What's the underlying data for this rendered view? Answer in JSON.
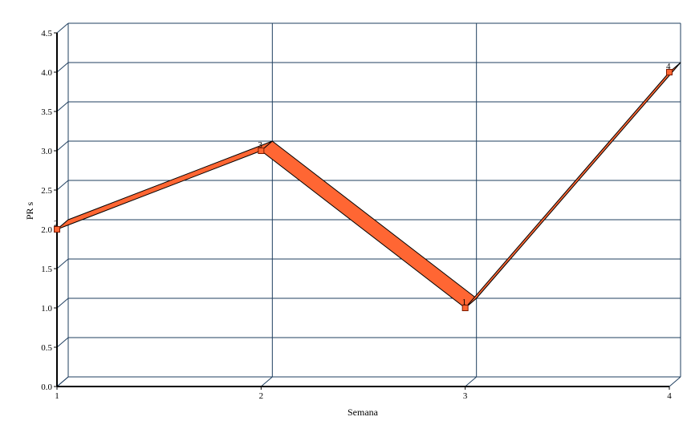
{
  "chart_data": {
    "type": "line",
    "title": "",
    "xlabel": "Semana",
    "ylabel": "PR s",
    "categories": [
      "1",
      "2",
      "3",
      "4"
    ],
    "x": [
      1,
      2,
      3,
      4
    ],
    "series": [
      {
        "values": [
          2,
          3,
          1,
          4
        ],
        "data_labels": [
          "2",
          "3",
          "1",
          "4"
        ]
      }
    ],
    "ylim": [
      0,
      4.5
    ],
    "yticks": [
      "0.0",
      "0.5",
      "1.0",
      "1.5",
      "2.0",
      "2.5",
      "3.0",
      "3.5",
      "4.0",
      "4.5"
    ],
    "grid": true,
    "legend": "none",
    "style": "3d-ribbon",
    "colors": {
      "series": "#ff6633",
      "grid": "#1f3f5f",
      "axis": "#000000",
      "outline": "#000000"
    }
  }
}
